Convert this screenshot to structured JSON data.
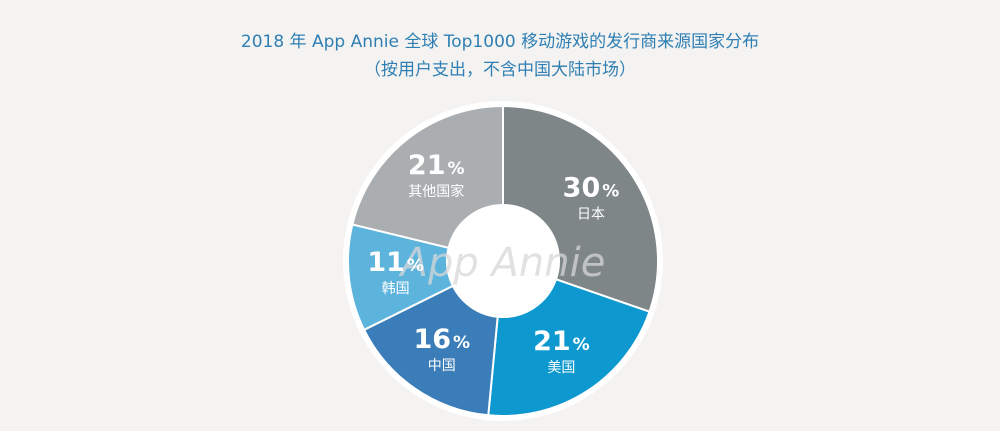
{
  "chart_data": {
    "type": "pie",
    "title": "2018 年 App Annie 全球 Top1000 移动游戏的发行商来源国家分布",
    "subtitle": "（按用户支出，不含中国大陆市场）",
    "slices": [
      {
        "label": "日本",
        "value": 30,
        "color": "#7f8688"
      },
      {
        "label": "美国",
        "value": 21,
        "color": "#0d99cf"
      },
      {
        "label": "中国",
        "value": 16,
        "color": "#3a7db8"
      },
      {
        "label": "韩国",
        "value": 11,
        "color": "#5cb3dc"
      },
      {
        "label": "其他国家",
        "value": 21,
        "color": "#aaaeb0"
      }
    ],
    "unit": "%",
    "watermark": "App Annie"
  }
}
